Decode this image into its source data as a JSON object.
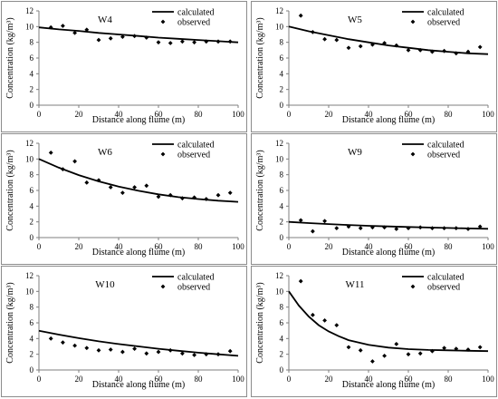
{
  "chart_data": [
    {
      "type": "line",
      "title": "W4",
      "xlabel": "Distance along flume (m)",
      "ylabel": "Concentration (kg/m³)",
      "xlim": [
        0,
        100
      ],
      "ylim": [
        0,
        12
      ],
      "xticks": [
        0,
        20,
        40,
        60,
        80,
        100
      ],
      "yticks": [
        0,
        2,
        4,
        6,
        8,
        10,
        12
      ],
      "legend": "top-right",
      "series": [
        {
          "name": "calculated",
          "style": "line",
          "x": [
            0,
            10,
            20,
            30,
            40,
            50,
            60,
            70,
            80,
            90,
            100
          ],
          "y": [
            9.9,
            9.65,
            9.45,
            9.2,
            9.0,
            8.8,
            8.6,
            8.45,
            8.3,
            8.15,
            8.0
          ]
        },
        {
          "name": "observed",
          "style": "marker",
          "x": [
            6,
            12,
            18,
            24,
            30,
            36,
            42,
            48,
            54,
            60,
            66,
            72,
            78,
            84,
            90,
            96
          ],
          "y": [
            9.9,
            10.1,
            9.2,
            9.6,
            8.3,
            8.5,
            8.7,
            8.8,
            8.6,
            8.0,
            7.9,
            8.1,
            8.0,
            8.1,
            8.1,
            8.1
          ]
        }
      ]
    },
    {
      "type": "line",
      "title": "W5",
      "xlabel": "Distance along flume (m)",
      "ylabel": "Concentration (kg/m³)",
      "xlim": [
        0,
        100
      ],
      "ylim": [
        0,
        12
      ],
      "xticks": [
        0,
        20,
        40,
        60,
        80,
        100
      ],
      "yticks": [
        0,
        2,
        4,
        6,
        8,
        10,
        12
      ],
      "legend": "top-right",
      "series": [
        {
          "name": "calculated",
          "style": "line",
          "x": [
            0,
            10,
            20,
            30,
            40,
            50,
            60,
            70,
            80,
            90,
            100
          ],
          "y": [
            10.0,
            9.4,
            8.9,
            8.4,
            8.0,
            7.6,
            7.3,
            7.0,
            6.8,
            6.6,
            6.5
          ]
        },
        {
          "name": "observed",
          "style": "marker",
          "x": [
            6,
            12,
            18,
            24,
            30,
            36,
            42,
            48,
            54,
            60,
            66,
            72,
            78,
            84,
            90,
            96
          ],
          "y": [
            11.4,
            9.3,
            8.4,
            8.3,
            7.3,
            7.5,
            7.7,
            7.9,
            7.6,
            7.0,
            7.0,
            6.8,
            6.9,
            6.6,
            6.8,
            7.4
          ]
        }
      ]
    },
    {
      "type": "line",
      "title": "W6",
      "xlabel": "Distance along flume (m)",
      "ylabel": "Concentration (kg/m³)",
      "xlim": [
        0,
        100
      ],
      "ylim": [
        0,
        12
      ],
      "xticks": [
        0,
        20,
        40,
        60,
        80,
        100
      ],
      "yticks": [
        0,
        2,
        4,
        6,
        8,
        10,
        12
      ],
      "legend": "top-right",
      "series": [
        {
          "name": "calculated",
          "style": "line",
          "x": [
            0,
            10,
            20,
            30,
            40,
            50,
            60,
            70,
            80,
            90,
            100
          ],
          "y": [
            10.0,
            8.9,
            7.95,
            7.15,
            6.5,
            5.95,
            5.5,
            5.15,
            4.9,
            4.7,
            4.55
          ]
        },
        {
          "name": "observed",
          "style": "marker",
          "x": [
            6,
            12,
            18,
            24,
            30,
            36,
            42,
            48,
            54,
            60,
            66,
            72,
            78,
            84,
            90,
            96
          ],
          "y": [
            10.8,
            8.7,
            9.7,
            7.0,
            7.3,
            6.4,
            5.7,
            6.4,
            6.6,
            5.2,
            5.4,
            5.0,
            5.1,
            4.9,
            5.4,
            5.7
          ]
        }
      ]
    },
    {
      "type": "line",
      "title": "W9",
      "xlabel": "Distance along flume (m)",
      "ylabel": "Concentration (kg/m³)",
      "xlim": [
        0,
        100
      ],
      "ylim": [
        0,
        12
      ],
      "xticks": [
        0,
        20,
        40,
        60,
        80,
        100
      ],
      "yticks": [
        0,
        2,
        4,
        6,
        8,
        10,
        12
      ],
      "legend": "top-right",
      "series": [
        {
          "name": "calculated",
          "style": "line",
          "x": [
            0,
            10,
            20,
            30,
            40,
            50,
            60,
            70,
            80,
            90,
            100
          ],
          "y": [
            2.0,
            1.85,
            1.72,
            1.6,
            1.5,
            1.42,
            1.35,
            1.28,
            1.22,
            1.17,
            1.12
          ]
        },
        {
          "name": "observed",
          "style": "marker",
          "x": [
            6,
            12,
            18,
            24,
            30,
            36,
            42,
            48,
            54,
            60,
            66,
            72,
            78,
            84,
            90,
            96
          ],
          "y": [
            2.2,
            0.8,
            2.1,
            1.2,
            1.4,
            1.2,
            1.3,
            1.3,
            1.1,
            1.2,
            1.3,
            1.2,
            1.2,
            1.2,
            1.1,
            1.4
          ]
        }
      ]
    },
    {
      "type": "line",
      "title": "W10",
      "xlabel": "Distance along flume (m)",
      "ylabel": "Concentration (kg/m³)",
      "xlim": [
        0,
        100
      ],
      "ylim": [
        0,
        12
      ],
      "xticks": [
        0,
        20,
        40,
        60,
        80,
        100
      ],
      "yticks": [
        0,
        2,
        4,
        6,
        8,
        10,
        12
      ],
      "legend": "top-right",
      "series": [
        {
          "name": "calculated",
          "style": "line",
          "x": [
            0,
            10,
            20,
            30,
            40,
            50,
            60,
            70,
            80,
            90,
            100
          ],
          "y": [
            5.0,
            4.5,
            4.05,
            3.65,
            3.3,
            3.0,
            2.7,
            2.45,
            2.2,
            2.0,
            1.8
          ]
        },
        {
          "name": "observed",
          "style": "marker",
          "x": [
            6,
            12,
            18,
            24,
            30,
            36,
            42,
            48,
            54,
            60,
            66,
            72,
            78,
            84,
            90,
            96
          ],
          "y": [
            4.0,
            3.5,
            3.1,
            2.8,
            2.5,
            2.6,
            2.3,
            2.7,
            2.1,
            2.3,
            2.5,
            2.1,
            1.9,
            2.0,
            2.0,
            2.4
          ]
        }
      ]
    },
    {
      "type": "line",
      "title": "W11",
      "xlabel": "Distance along flume (m)",
      "ylabel": "Concentration (kg/m³)",
      "xlim": [
        0,
        100
      ],
      "ylim": [
        0,
        12
      ],
      "xticks": [
        0,
        20,
        40,
        60,
        80,
        100
      ],
      "yticks": [
        0,
        2,
        4,
        6,
        8,
        10,
        12
      ],
      "legend": "top-right",
      "series": [
        {
          "name": "calculated",
          "style": "line",
          "x": [
            0,
            5,
            10,
            15,
            20,
            25,
            30,
            40,
            50,
            60,
            70,
            80,
            90,
            100
          ],
          "y": [
            10.0,
            8.2,
            6.8,
            5.7,
            4.9,
            4.3,
            3.8,
            3.2,
            2.85,
            2.65,
            2.55,
            2.5,
            2.45,
            2.4
          ]
        },
        {
          "name": "observed",
          "style": "marker",
          "x": [
            6,
            12,
            18,
            24,
            30,
            36,
            42,
            48,
            54,
            60,
            66,
            72,
            78,
            84,
            90,
            96
          ],
          "y": [
            11.3,
            7.0,
            6.3,
            5.7,
            2.9,
            2.5,
            1.1,
            1.8,
            3.3,
            2.0,
            2.1,
            2.4,
            2.8,
            2.7,
            2.6,
            2.9
          ]
        }
      ]
    }
  ]
}
